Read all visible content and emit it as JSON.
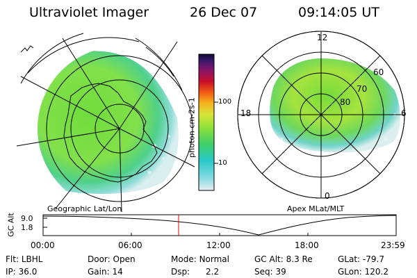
{
  "header": {
    "title": "Ultraviolet Imager",
    "date": "26 Dec 07",
    "time": "09:14:05 UT"
  },
  "colorbar": {
    "unit_label": "photon cm-2s-1",
    "tick_labels": [
      "100",
      "10"
    ]
  },
  "maps": {
    "left_label": "Geographic Lat/Lon",
    "right_label": "Apex MLat/MLT",
    "right_mlt_labels": [
      "12",
      "18",
      "6",
      "0"
    ],
    "right_mlat_labels": [
      "60",
      "70",
      "80"
    ]
  },
  "timeline": {
    "ylabel": "GC Alt",
    "y_ticks": [
      "9.0",
      "1.8"
    ],
    "x_ticks": [
      "00:00",
      "06:00",
      "12:00",
      "18:00",
      "23:59"
    ],
    "marker_time": "09:14"
  },
  "status": {
    "row1": [
      {
        "label": "Flt:",
        "value": "LBHL"
      },
      {
        "label": "Door:",
        "value": "Open"
      },
      {
        "label": "Mode:",
        "value": "Normal"
      },
      {
        "label": "GC Alt:",
        "value": "8.3 Re"
      },
      {
        "label": "GLat:",
        "value": "-79.7"
      }
    ],
    "row2": [
      {
        "label": "IP:",
        "value": "36.0"
      },
      {
        "label": "Gain:",
        "value": "14"
      },
      {
        "label": "Dsp:",
        "value": "2.2"
      },
      {
        "label": "Seq:",
        "value": "39"
      },
      {
        "label": "GLon:",
        "value": "120.2"
      }
    ]
  },
  "colors": {
    "green": "#7dde3a",
    "yellowgreen": "#b6e33a",
    "cyan": "#3fd0d0",
    "lightcyan": "#bfe9ea",
    "marker": "#e00000"
  }
}
